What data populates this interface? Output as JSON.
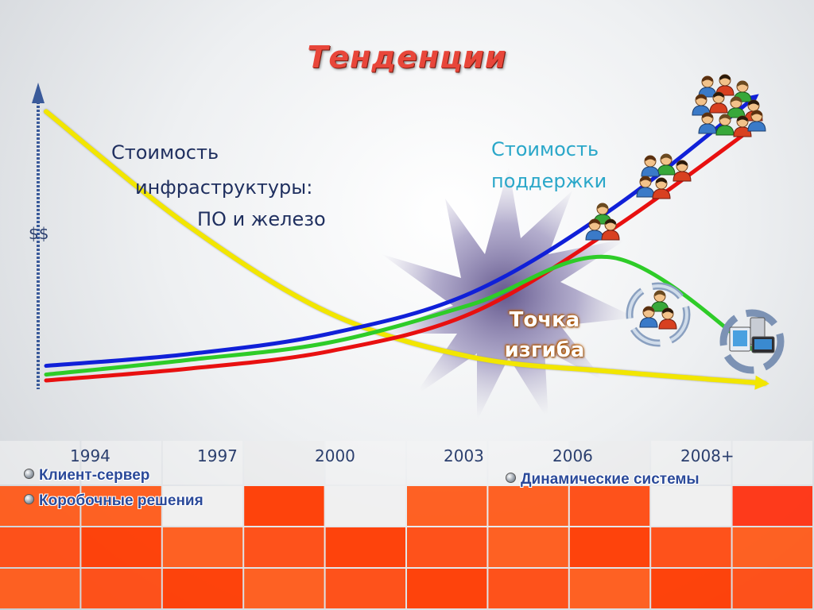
{
  "title": "Тенденции",
  "colors": {
    "title": "#e8463a",
    "infrastructure": "#f2e600",
    "support_blue": "#1020d8",
    "support_red": "#e81010",
    "green": "#2ecc28"
  },
  "labels": {
    "infra_line1": "Стоимость",
    "infra_line2": "инфраструктуры:",
    "infra_line3": "ПО и железо",
    "support_line1": "Стоимость",
    "support_line2": "поддержки",
    "inflection_line1": "Точка",
    "inflection_line2": "изгиба",
    "y_axis": "$$"
  },
  "bullets": {
    "client_server": "Клиент-сервер",
    "boxed": "Коробочные решения",
    "dynamic": "Динамические системы"
  },
  "chart_data": {
    "type": "line",
    "x": [
      "1994",
      "1997",
      "2000",
      "2003",
      "2006",
      "2008+"
    ],
    "xlabel": "",
    "ylabel": "$$",
    "grid": false,
    "series": [
      {
        "key": "infrastructure",
        "color": "#f2e600",
        "values": [
          9.5,
          5.6,
          2.6,
          1.1,
          0.6,
          0.2
        ]
      },
      {
        "key": "support_blue",
        "color": "#1020d8",
        "values": [
          0.8,
          1.2,
          1.9,
          3.3,
          6.2,
          10.0
        ]
      },
      {
        "key": "support_red",
        "color": "#e81010",
        "values": [
          0.3,
          0.7,
          1.3,
          2.6,
          5.5,
          9.0
        ]
      },
      {
        "key": "support_green",
        "color": "#2ecc28",
        "values": [
          0.5,
          1.0,
          1.6,
          2.9,
          4.5,
          1.3
        ]
      }
    ]
  },
  "icons": {
    "people_small": "people-icon",
    "people_group": "people-group-icon",
    "people_crowd": "people-crowd-icon",
    "cycle": "cycle-people-icon",
    "systems": "dynamic-systems-icon"
  }
}
